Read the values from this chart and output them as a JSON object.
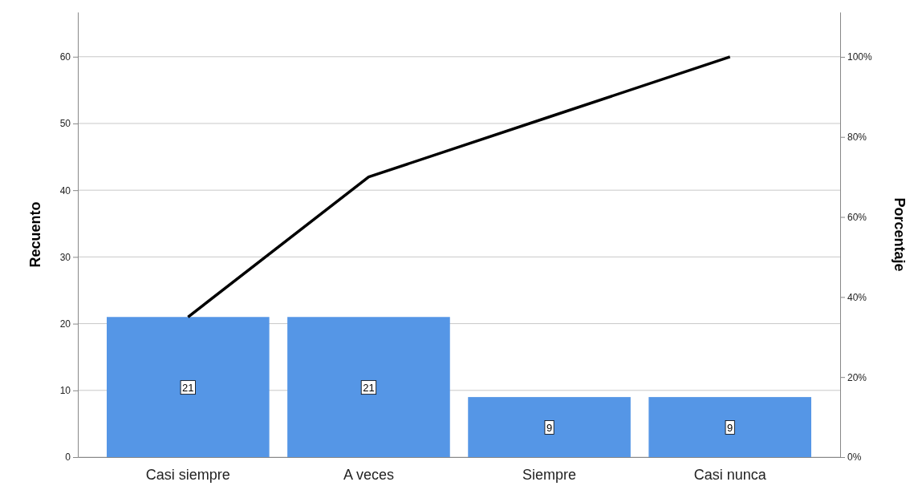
{
  "chart_data": {
    "type": "bar",
    "categories": [
      "Casi siempre",
      "A veces",
      "Siempre",
      "Casi nunca"
    ],
    "series": [
      {
        "color": "#5596e6",
        "values": [
          21,
          21,
          9,
          9
        ],
        "value_labels": [
          "21",
          "21",
          "9",
          "9"
        ]
      },
      {
        "type": "line",
        "axis": "y2",
        "color": "#000000",
        "values": [
          35,
          70,
          85,
          100
        ]
      }
    ],
    "ylabel": "Recuento",
    "y2label": "Porcentaje",
    "ylim": [
      0,
      66.7
    ],
    "yticks": [
      0,
      10,
      20,
      30,
      40,
      50,
      60
    ],
    "y2lim": [
      0,
      111.2
    ],
    "y2ticks": [
      {
        "value": 0,
        "label": "0%"
      },
      {
        "value": 20,
        "label": "20%"
      },
      {
        "value": 40,
        "label": "40%"
      },
      {
        "value": 60,
        "label": "60%"
      },
      {
        "value": 80,
        "label": "80%"
      },
      {
        "value": 100,
        "label": "100%"
      }
    ],
    "grid": "y",
    "marker": "none",
    "line_style": "solid"
  }
}
